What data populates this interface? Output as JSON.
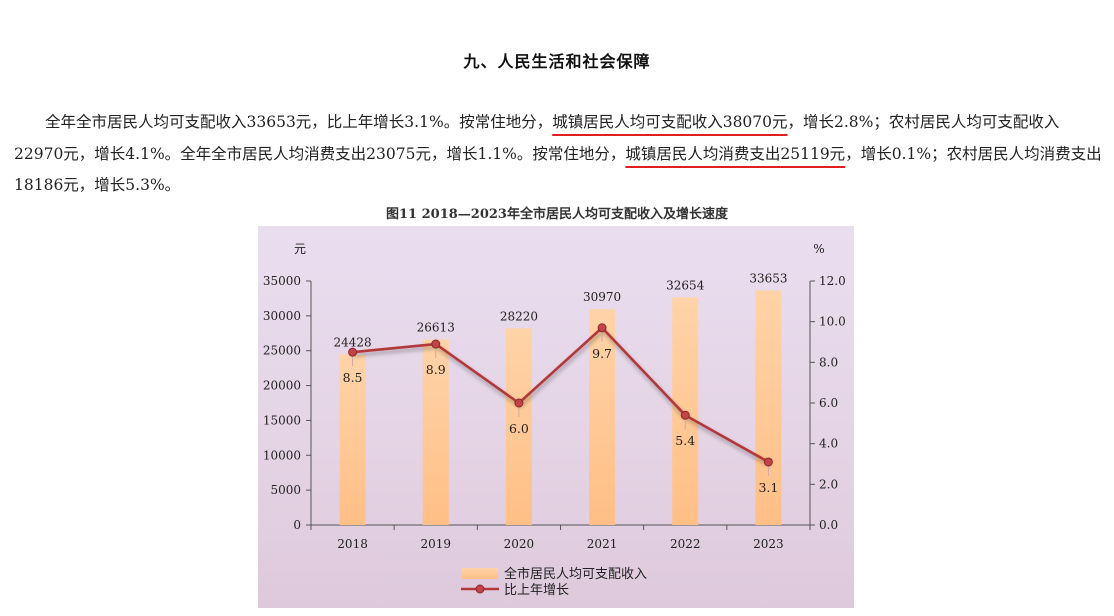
{
  "section_title": "九、人民生活和社会保障",
  "paragraph": {
    "p1": "全年全市居民人均可支配收入33653元，比上年增长3.1%。按常住地分，",
    "h1": "城镇居民人均可支配收入38070元",
    "p2": "，增长2.8%；农村居民人均可支配收入22970元，增长4.1%。全年全市居民人均消费支出23075元，增长1.1%。按常住地分，",
    "h2": "城镇居民人均消费支出25119元",
    "p3": "，增长0.1%；农村居民人均消费支出18186元，增长5.3%。"
  },
  "figure_title": "图11  2018—2023年全市居民人均可支配收入及增长速度",
  "colors": {
    "bar": "#ffc58f",
    "line": "#b3383a",
    "underline": "#e0201c"
  },
  "chart_data": {
    "type": "bar",
    "title": "图11  2018—2023年全市居民人均可支配收入及增长速度",
    "categories": [
      "2018",
      "2019",
      "2020",
      "2021",
      "2022",
      "2023"
    ],
    "y_left_unit": "元",
    "y_right_unit": "%",
    "ylim_left": [
      0,
      35000
    ],
    "ylim_right": [
      0,
      12
    ],
    "left_ticks": [
      "0",
      "5000",
      "10000",
      "15000",
      "20000",
      "25000",
      "30000",
      "35000"
    ],
    "right_ticks": [
      "0.0",
      "2.0",
      "4.0",
      "6.0",
      "8.0",
      "10.0",
      "12.0"
    ],
    "series": [
      {
        "name": "全市居民人均可支配收入",
        "type": "bar",
        "values": [
          24428,
          26613,
          28220,
          30970,
          32654,
          33653
        ],
        "labels": [
          "24428",
          "26613",
          "28220",
          "30970",
          "32654",
          "33653"
        ]
      },
      {
        "name": "比上年增长",
        "type": "line",
        "values": [
          8.5,
          8.9,
          6.0,
          9.7,
          5.4,
          3.1
        ],
        "labels": [
          "8.5",
          "8.9",
          "6.0",
          "9.7",
          "5.4",
          "3.1"
        ]
      }
    ],
    "legend_position": "bottom",
    "grid": false
  }
}
